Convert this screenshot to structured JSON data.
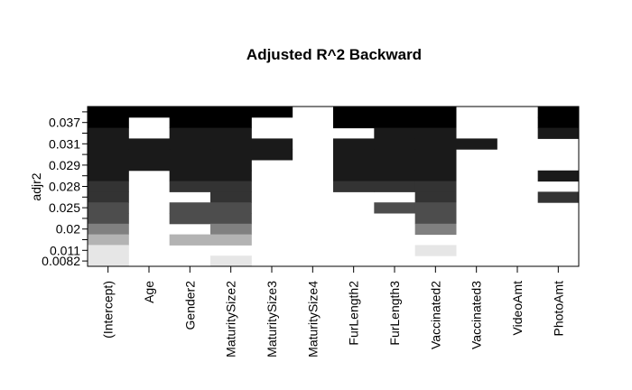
{
  "chart_data": {
    "type": "heatmap",
    "title": "Adjusted R^2 Backward",
    "ylabel": "adjr2",
    "xlabel": "",
    "columns": [
      "(Intercept)",
      "Age",
      "Gender2",
      "MaturitySize2",
      "MaturitySize3",
      "MaturitySize4",
      "FurLength2",
      "FurLength3",
      "Vaccinated2",
      "Vaccinated3",
      "VideoAmt",
      "PhotoAmt"
    ],
    "y_ticks": [
      "0.037",
      "0.031",
      "0.029",
      "0.028",
      "0.025",
      "0.02",
      "0.011",
      "0.0082"
    ],
    "rows": [
      {
        "label": "0.037",
        "color": "#000000",
        "cells": [
          1,
          1,
          1,
          1,
          1,
          0,
          1,
          1,
          1,
          0,
          0,
          1
        ]
      },
      {
        "label": "0.037",
        "color": "#000000",
        "cells": [
          1,
          0,
          1,
          1,
          0,
          0,
          1,
          1,
          1,
          0,
          0,
          1
        ]
      },
      {
        "label": "0.031",
        "color": "#1a1a1a",
        "cells": [
          1,
          0,
          1,
          1,
          0,
          0,
          0,
          1,
          1,
          0,
          0,
          1
        ]
      },
      {
        "label": "0.031",
        "color": "#1a1a1a",
        "cells": [
          1,
          1,
          1,
          1,
          1,
          0,
          1,
          1,
          1,
          1,
          0,
          0
        ]
      },
      {
        "label": "0.029",
        "color": "#1a1a1a",
        "cells": [
          1,
          1,
          1,
          1,
          1,
          0,
          1,
          1,
          1,
          0,
          0,
          0
        ]
      },
      {
        "label": "0.029",
        "color": "#1a1a1a",
        "cells": [
          1,
          1,
          1,
          1,
          0,
          0,
          1,
          1,
          1,
          0,
          0,
          0
        ]
      },
      {
        "label": "0.028",
        "color": "#1a1a1a",
        "cells": [
          1,
          0,
          1,
          1,
          0,
          0,
          1,
          1,
          1,
          0,
          0,
          1
        ]
      },
      {
        "label": "0.028",
        "color": "#333333",
        "cells": [
          1,
          0,
          1,
          1,
          0,
          0,
          1,
          1,
          1,
          0,
          0,
          0
        ]
      },
      {
        "label": "0.025",
        "color": "#333333",
        "cells": [
          1,
          0,
          0,
          1,
          0,
          0,
          0,
          0,
          1,
          0,
          0,
          1
        ]
      },
      {
        "label": "0.025",
        "color": "#4d4d4d",
        "cells": [
          1,
          0,
          1,
          1,
          0,
          0,
          0,
          1,
          1,
          0,
          0,
          0
        ]
      },
      {
        "label": "0.02",
        "color": "#4d4d4d",
        "cells": [
          1,
          0,
          1,
          1,
          0,
          0,
          0,
          0,
          1,
          0,
          0,
          0
        ]
      },
      {
        "label": "0.02",
        "color": "#808080",
        "cells": [
          1,
          0,
          0,
          1,
          0,
          0,
          0,
          0,
          1,
          0,
          0,
          0
        ]
      },
      {
        "label": "0.011",
        "color": "#b3b3b3",
        "cells": [
          1,
          0,
          1,
          1,
          0,
          0,
          0,
          0,
          0,
          0,
          0,
          0
        ]
      },
      {
        "label": "0.011",
        "color": "#e6e6e6",
        "cells": [
          1,
          0,
          0,
          0,
          0,
          0,
          0,
          0,
          1,
          0,
          0,
          0
        ]
      },
      {
        "label": "0.0082",
        "color": "#e6e6e6",
        "cells": [
          1,
          0,
          0,
          1,
          0,
          0,
          0,
          0,
          0,
          0,
          0,
          0
        ]
      }
    ],
    "grid": false,
    "legend": "none"
  }
}
